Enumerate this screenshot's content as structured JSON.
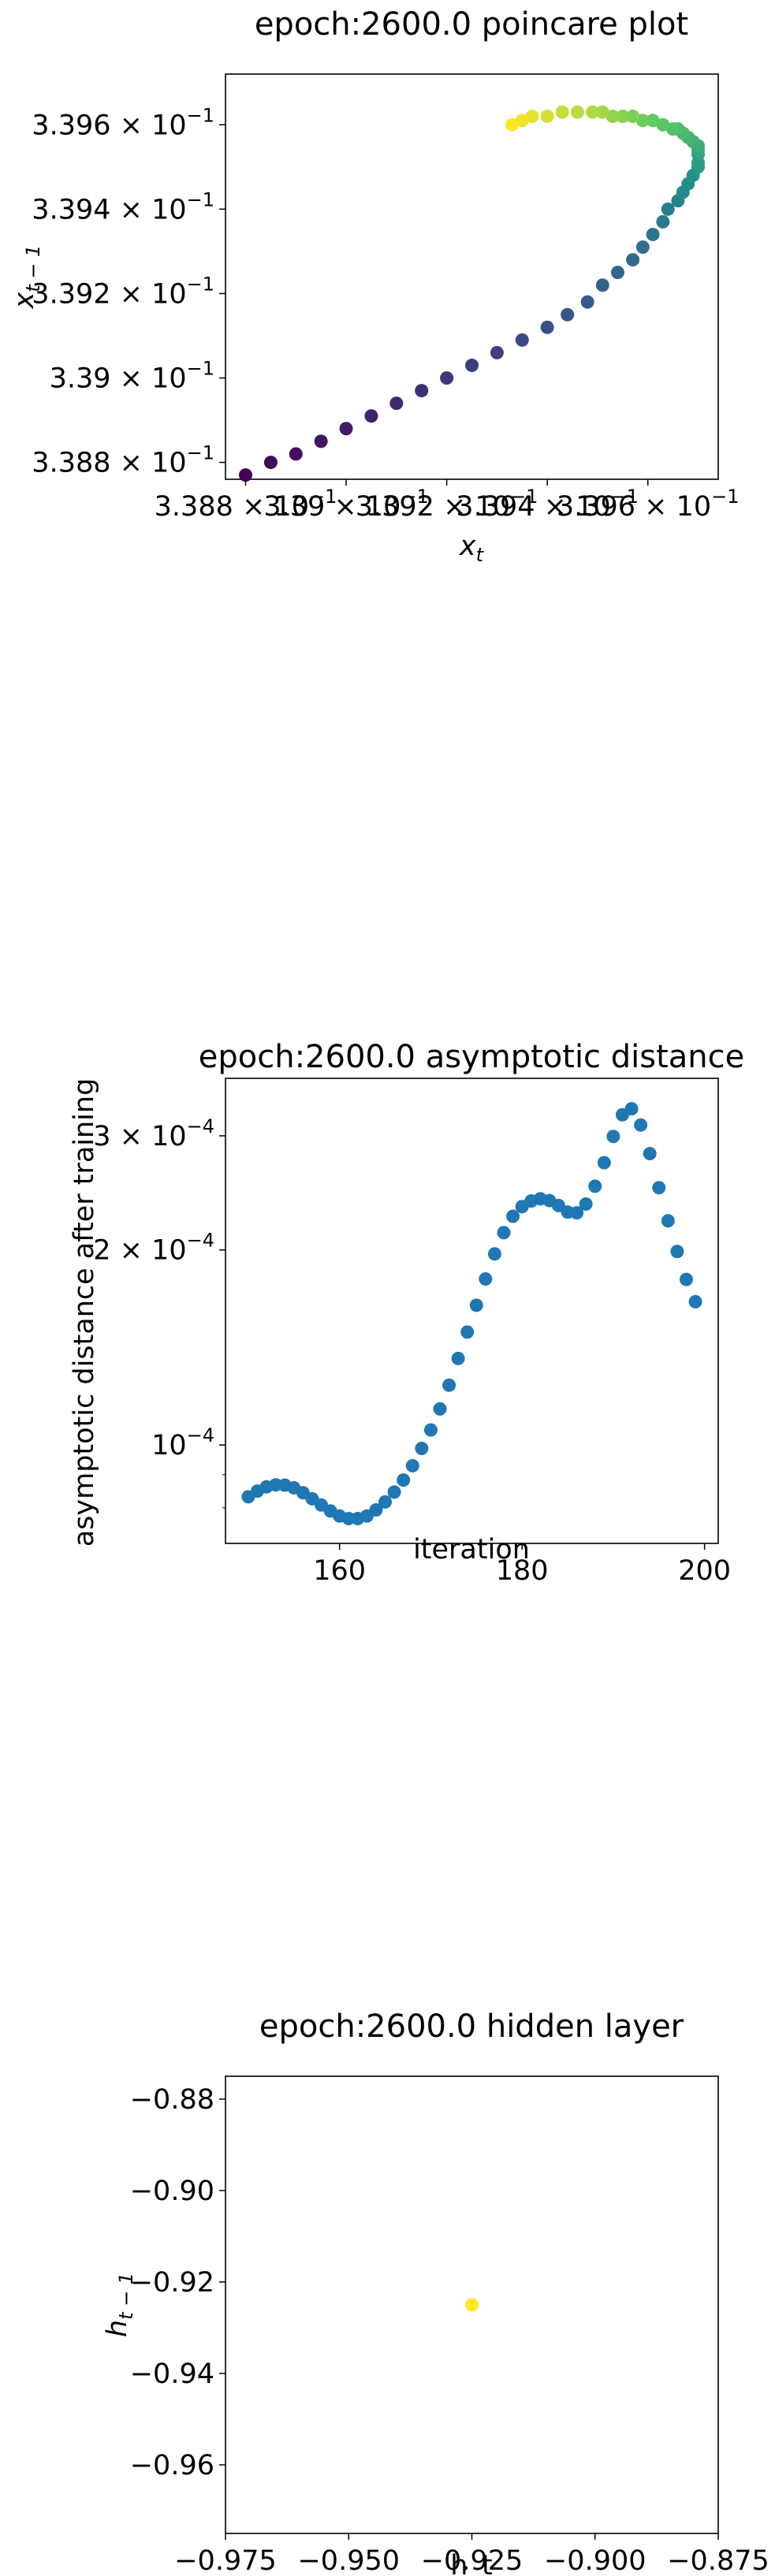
{
  "chart_data": [
    {
      "type": "scatter",
      "title": "epoch:2600.0 poincare plot",
      "xlabel": "x_t",
      "ylabel": "x_{t-1}",
      "xlim": [
        0.33876,
        0.33974
      ],
      "ylim": [
        0.33876,
        0.33972
      ],
      "x_ticks": [
        {
          "value": 0.3388,
          "label": "3.388 × 10^-1"
        },
        {
          "value": 0.339,
          "label": "3.39 × 10^-1"
        },
        {
          "value": 0.3392,
          "label": "3.392 × 10^-1"
        },
        {
          "value": 0.3394,
          "label": "3.394 × 10^-1"
        },
        {
          "value": 0.3396,
          "label": "3.396 × 10^-1"
        }
      ],
      "y_ticks": [
        {
          "value": 0.3388,
          "label": "3.388 × 10^-1"
        },
        {
          "value": 0.339,
          "label": "3.39 × 10^-1"
        },
        {
          "value": 0.3392,
          "label": "3.392 × 10^-1"
        },
        {
          "value": 0.3394,
          "label": "3.394 × 10^-1"
        },
        {
          "value": 0.3396,
          "label": "3.396 × 10^-1"
        }
      ],
      "colormap": "viridis",
      "series": [
        {
          "points": [
            [
              0.3388,
              0.33877
            ],
            [
              0.33885,
              0.3388
            ],
            [
              0.3389,
              0.33882
            ],
            [
              0.33895,
              0.33885
            ],
            [
              0.339,
              0.33888
            ],
            [
              0.33905,
              0.33891
            ],
            [
              0.3391,
              0.33894
            ],
            [
              0.33915,
              0.33897
            ],
            [
              0.3392,
              0.339
            ],
            [
              0.33925,
              0.33903
            ],
            [
              0.3393,
              0.33906
            ],
            [
              0.33935,
              0.33909
            ],
            [
              0.3394,
              0.33912
            ],
            [
              0.33944,
              0.33915
            ],
            [
              0.33948,
              0.33918
            ],
            [
              0.33951,
              0.33922
            ],
            [
              0.33954,
              0.33925
            ],
            [
              0.33957,
              0.33928
            ],
            [
              0.33959,
              0.33931
            ],
            [
              0.33961,
              0.33934
            ],
            [
              0.33963,
              0.33937
            ],
            [
              0.33964,
              0.3394
            ],
            [
              0.33966,
              0.33942
            ],
            [
              0.33967,
              0.33944
            ],
            [
              0.33968,
              0.33946
            ],
            [
              0.33969,
              0.33948
            ],
            [
              0.3397,
              0.3395
            ],
            [
              0.3397,
              0.33951
            ],
            [
              0.3397,
              0.33953
            ],
            [
              0.3397,
              0.33954
            ],
            [
              0.3397,
              0.33955
            ],
            [
              0.33969,
              0.33956
            ],
            [
              0.33968,
              0.33957
            ],
            [
              0.33967,
              0.33958
            ],
            [
              0.33966,
              0.33959
            ],
            [
              0.33965,
              0.33959
            ],
            [
              0.33963,
              0.3396
            ],
            [
              0.33961,
              0.33961
            ],
            [
              0.33959,
              0.33961
            ],
            [
              0.33957,
              0.33962
            ],
            [
              0.33955,
              0.33962
            ],
            [
              0.33953,
              0.33962
            ],
            [
              0.33951,
              0.33963
            ],
            [
              0.33949,
              0.33963
            ],
            [
              0.33946,
              0.33963
            ],
            [
              0.33943,
              0.33963
            ],
            [
              0.3394,
              0.33962
            ],
            [
              0.33937,
              0.33962
            ],
            [
              0.33935,
              0.33961
            ],
            [
              0.33933,
              0.3396
            ]
          ]
        }
      ]
    },
    {
      "type": "scatter",
      "title": "epoch:2600.0 asymptotic distance",
      "xlabel": "iteration",
      "ylabel": "asymptotic distance after training",
      "yscale": "log",
      "xlim": [
        147.5,
        201.5
      ],
      "ylim": [
        7.05e-05,
        0.000368
      ],
      "x_ticks": [
        {
          "value": 160,
          "label": "160"
        },
        {
          "value": 180,
          "label": "180"
        },
        {
          "value": 200,
          "label": "200"
        }
      ],
      "y_ticks": [
        {
          "value": 0.0001,
          "label": "10^-4"
        },
        {
          "value": 0.0002,
          "label": "2 × 10^-4"
        },
        {
          "value": 0.0003,
          "label": "3 × 10^-4"
        }
      ],
      "color": "#1f77b4",
      "x": [
        150,
        151,
        152,
        153,
        154,
        155,
        156,
        157,
        158,
        159,
        160,
        161,
        162,
        163,
        164,
        165,
        166,
        167,
        168,
        169,
        170,
        171,
        172,
        173,
        174,
        175,
        176,
        177,
        178,
        179,
        180,
        181,
        182,
        183,
        184,
        185,
        186,
        187,
        188,
        189,
        190,
        191,
        192,
        193,
        194,
        195,
        196,
        197,
        198,
        199
      ],
      "values": [
        8.32e-05,
        8.49e-05,
        8.62e-05,
        8.68e-05,
        8.67e-05,
        8.59e-05,
        8.44e-05,
        8.26e-05,
        8.08e-05,
        7.91e-05,
        7.77e-05,
        7.7e-05,
        7.7e-05,
        7.77e-05,
        7.94e-05,
        8.17e-05,
        8.46e-05,
        8.83e-05,
        9.29e-05,
        9.88e-05,
        0.0001055,
        0.0001137,
        0.0001237,
        0.000136,
        0.0001494,
        0.0001643,
        0.0001804,
        0.0001972,
        0.0002127,
        0.0002254,
        0.0002333,
        0.000238,
        0.0002398,
        0.0002383,
        0.0002342,
        0.0002288,
        0.0002282,
        0.0002354,
        0.0002508,
        0.0002727,
        0.0002993,
        0.0003233,
        0.0003303,
        0.0003117,
        0.0002816,
        0.0002495,
        0.0002218,
        0.0001989,
        0.0001801,
        0.0001664
      ]
    },
    {
      "type": "scatter",
      "title": "epoch:2600.0 hidden layer",
      "xlabel": "h_t",
      "ylabel": "h_{t-1}",
      "xlim": [
        -0.975,
        -0.875
      ],
      "ylim": [
        -0.975,
        -0.875
      ],
      "x_ticks": [
        {
          "value": -0.975,
          "label": "−0.975"
        },
        {
          "value": -0.95,
          "label": "−0.950"
        },
        {
          "value": -0.925,
          "label": "−0.925"
        },
        {
          "value": -0.9,
          "label": "−0.900"
        },
        {
          "value": -0.875,
          "label": "−0.875"
        }
      ],
      "y_ticks": [
        {
          "value": -0.88,
          "label": "−0.88"
        },
        {
          "value": -0.9,
          "label": "−0.90"
        },
        {
          "value": -0.92,
          "label": "−0.92"
        },
        {
          "value": -0.94,
          "label": "−0.94"
        },
        {
          "value": -0.96,
          "label": "−0.96"
        }
      ],
      "color": "#fde725",
      "points": [
        [
          -0.925,
          -0.925
        ]
      ]
    }
  ]
}
